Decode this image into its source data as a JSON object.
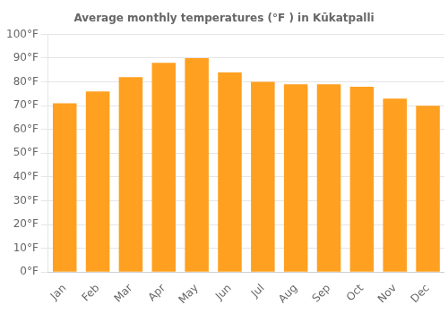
{
  "chart_data": {
    "type": "bar",
    "title": "Average monthly temperatures (°F ) in Kūkatpalli",
    "categories": [
      "Jan",
      "Feb",
      "Mar",
      "Apr",
      "May",
      "Jun",
      "Jul",
      "Aug",
      "Sep",
      "Oct",
      "Nov",
      "Dec"
    ],
    "values": [
      71,
      76,
      82,
      88,
      90,
      84,
      80,
      79,
      79,
      78,
      73,
      70
    ],
    "color": "#FFA020",
    "ylim": [
      0,
      100
    ],
    "yticks": [
      {
        "value": 0,
        "label": "0°F"
      },
      {
        "value": 10,
        "label": "10°F"
      },
      {
        "value": 20,
        "label": "20°F"
      },
      {
        "value": 30,
        "label": "30°F"
      },
      {
        "value": 40,
        "label": "40°F"
      },
      {
        "value": 50,
        "label": "50°F"
      },
      {
        "value": 60,
        "label": "60°F"
      },
      {
        "value": 70,
        "label": "70°F"
      },
      {
        "value": 80,
        "label": "80°F"
      },
      {
        "value": 90,
        "label": "90°F"
      },
      {
        "value": 100,
        "label": "100°F"
      }
    ],
    "grid": true
  }
}
